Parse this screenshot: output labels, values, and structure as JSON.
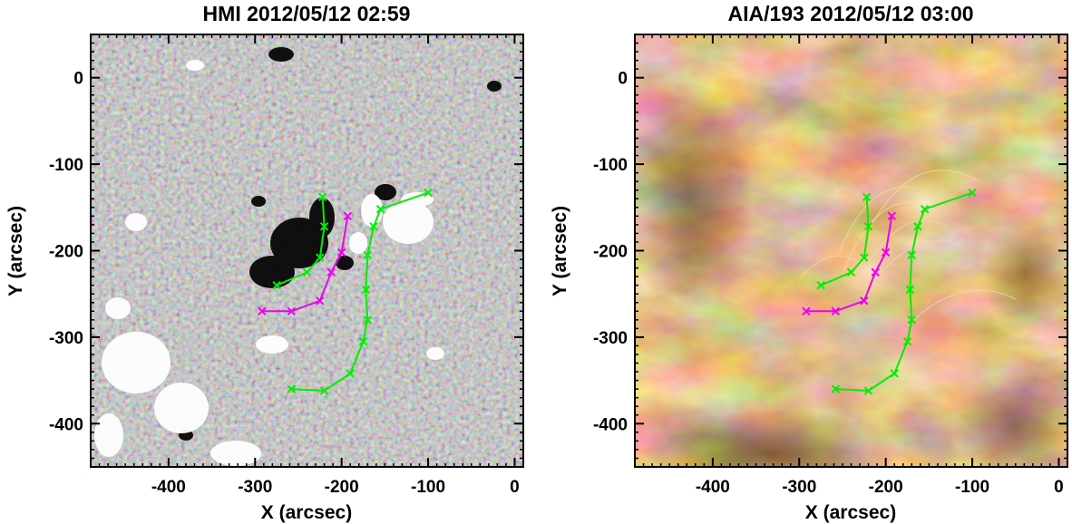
{
  "panels": [
    {
      "id": "hmi",
      "title": "HMI 2012/05/12 02:59",
      "kind": "magnetogram",
      "xlabel": "X (arcsec)",
      "ylabel": "Y (arcsec)",
      "x_ticks": [
        "-400",
        "-300",
        "-200",
        "-100",
        "0"
      ],
      "y_ticks": [
        "0",
        "-100",
        "-200",
        "-300",
        "-400"
      ]
    },
    {
      "id": "aia",
      "title": "AIA/193 2012/05/12 03:00",
      "kind": "euv",
      "xlabel": "X (arcsec)",
      "ylabel": "Y (arcsec)",
      "x_ticks": [
        "-400",
        "-300",
        "-200",
        "-100",
        "0"
      ],
      "y_ticks": [
        "0",
        "-100",
        "-200",
        "-300",
        "-400"
      ]
    }
  ],
  "axes": {
    "xlim": [
      -490,
      10
    ],
    "ylim": [
      -450,
      50
    ],
    "x_tick_values": [
      -400,
      -300,
      -200,
      -100,
      0
    ],
    "y_tick_values": [
      0,
      -100,
      -200,
      -300,
      -400
    ]
  },
  "overlays": {
    "green_upper": [
      [
        -275,
        -240
      ],
      [
        -240,
        -225
      ],
      [
        -225,
        -208
      ],
      [
        -220,
        -172
      ],
      [
        -222,
        -138
      ]
    ],
    "green_lower": [
      [
        -258,
        -360
      ],
      [
        -220,
        -362
      ],
      [
        -190,
        -342
      ],
      [
        -175,
        -305
      ],
      [
        -170,
        -280
      ],
      [
        -172,
        -245
      ],
      [
        -170,
        -205
      ],
      [
        -163,
        -172
      ],
      [
        -155,
        -152
      ],
      [
        -100,
        -133
      ]
    ],
    "magenta": [
      [
        -292,
        -270
      ],
      [
        -258,
        -270
      ],
      [
        -225,
        -258
      ],
      [
        -212,
        -225
      ],
      [
        -200,
        -202
      ],
      [
        -193,
        -160
      ]
    ],
    "colors": {
      "green": "#00ee00",
      "magenta": "#ee00ee"
    }
  }
}
